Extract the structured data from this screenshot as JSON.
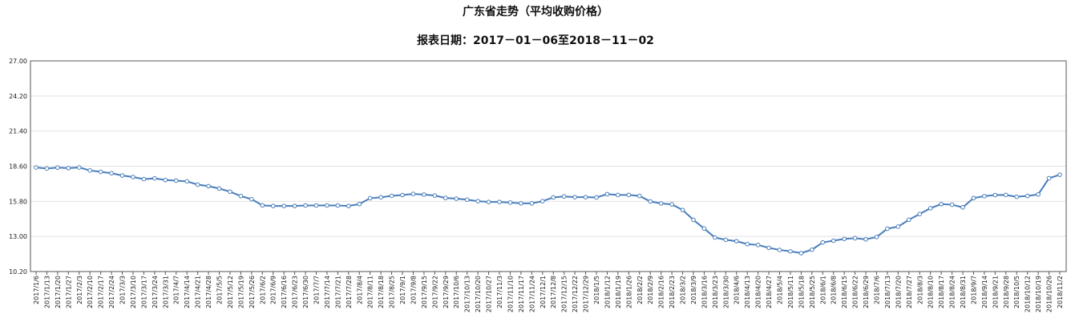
{
  "chart_data": {
    "type": "line",
    "title": "广东省走势（平均收购价格）",
    "subtitle": "报表日期：2017－01－06至2018－11－02",
    "xlabel": "",
    "ylabel": "",
    "ylim": [
      10.2,
      27.0
    ],
    "yticks": [
      "27.00",
      "24.20",
      "21.40",
      "18.60",
      "15.80",
      "13.00",
      "10.20"
    ],
    "grid": true,
    "legend": "none",
    "line_color": "#4a7ebb",
    "categories": [
      "2017/1/6",
      "2017/1/13",
      "2017/1/20",
      "2017/1/27",
      "2017/2/3",
      "2017/2/10",
      "2017/2/17",
      "2017/2/24",
      "2017/3/3",
      "2017/3/10",
      "2017/3/17",
      "2017/3/24",
      "2017/3/31",
      "2017/4/7",
      "2017/4/14",
      "2017/4/21",
      "2017/4/28",
      "2017/5/5",
      "2017/5/12",
      "2017/5/19",
      "2017/5/26",
      "2017/6/2",
      "2017/6/9",
      "2017/6/16",
      "2017/6/23",
      "2017/6/30",
      "2017/7/7",
      "2017/7/14",
      "2017/7/21",
      "2017/7/28",
      "2017/8/4",
      "2017/8/11",
      "2017/8/18",
      "2017/8/25",
      "2017/9/1",
      "2017/9/8",
      "2017/9/15",
      "2017/9/22",
      "2017/9/29",
      "2017/10/6",
      "2017/10/13",
      "2017/10/20",
      "2017/10/27",
      "2017/11/3",
      "2017/11/10",
      "2017/11/17",
      "2017/11/24",
      "2017/12/1",
      "2017/12/8",
      "2017/12/15",
      "2017/12/22",
      "2017/12/29",
      "2018/1/5",
      "2018/1/12",
      "2018/1/19",
      "2018/1/26",
      "2018/2/2",
      "2018/2/9",
      "2018/2/16",
      "2018/2/23",
      "2018/3/2",
      "2018/3/9",
      "2018/3/16",
      "2018/3/23",
      "2018/3/30",
      "2018/4/6",
      "2018/4/13",
      "2018/4/20",
      "2018/4/27",
      "2018/5/4",
      "2018/5/11",
      "2018/5/18",
      "2018/5/25",
      "2018/6/1",
      "2018/6/8",
      "2018/6/15",
      "2018/6/22",
      "2018/6/29",
      "2018/7/6",
      "2018/7/13",
      "2018/7/20",
      "2018/7/27",
      "2018/8/3",
      "2018/8/10",
      "2018/8/17",
      "2018/8/24",
      "2018/8/31",
      "2018/9/7",
      "2018/9/14",
      "2018/9/21",
      "2018/9/28",
      "2018/10/5",
      "2018/10/12",
      "2018/10/19",
      "2018/10/26",
      "2018/11/2"
    ],
    "values": [
      18.5,
      18.42,
      18.49,
      18.45,
      18.5,
      18.26,
      18.15,
      18.04,
      17.86,
      17.74,
      17.57,
      17.63,
      17.5,
      17.45,
      17.39,
      17.13,
      17.01,
      16.82,
      16.57,
      16.22,
      15.97,
      15.48,
      15.43,
      15.43,
      15.43,
      15.47,
      15.47,
      15.47,
      15.47,
      15.43,
      15.58,
      16.05,
      16.12,
      16.24,
      16.3,
      16.39,
      16.34,
      16.26,
      16.07,
      16.01,
      15.93,
      15.81,
      15.75,
      15.75,
      15.7,
      15.64,
      15.64,
      15.81,
      16.11,
      16.19,
      16.13,
      16.13,
      16.11,
      16.37,
      16.31,
      16.31,
      16.23,
      15.79,
      15.63,
      15.56,
      15.11,
      14.32,
      13.63,
      12.91,
      12.73,
      12.62,
      12.39,
      12.32,
      12.09,
      11.92,
      11.81,
      11.67,
      11.94,
      12.52,
      12.66,
      12.8,
      12.86,
      12.77,
      12.95,
      13.62,
      13.78,
      14.33,
      14.79,
      15.25,
      15.58,
      15.53,
      15.32,
      16.06,
      16.21,
      16.3,
      16.31,
      16.16,
      16.23,
      16.35,
      17.64,
      17.92
    ]
  }
}
